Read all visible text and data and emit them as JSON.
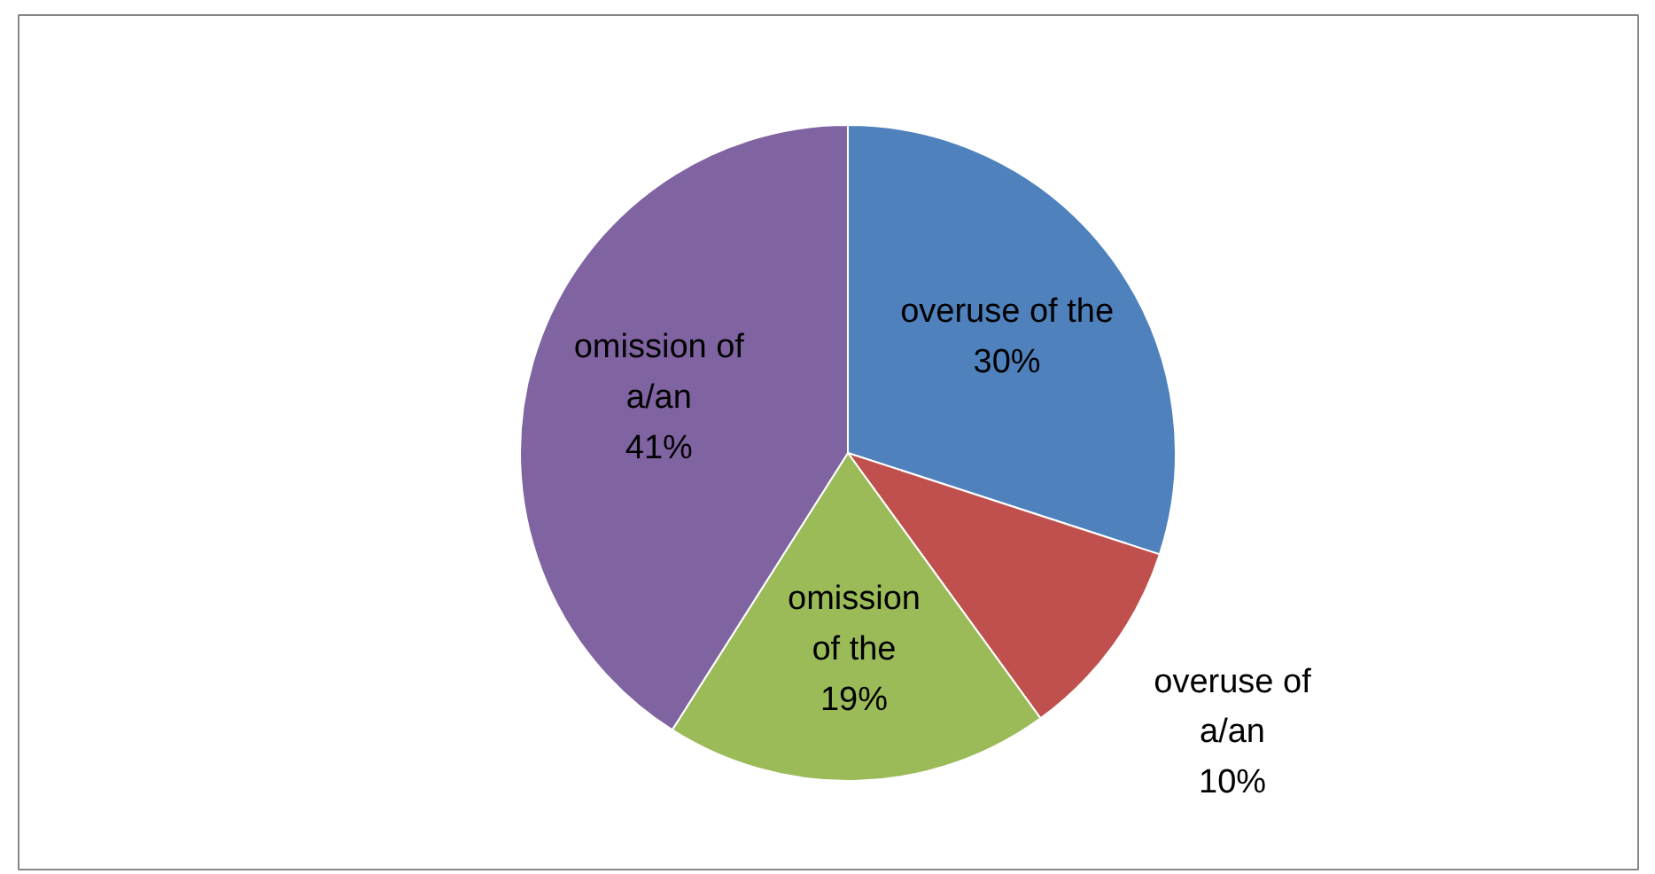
{
  "chart_data": {
    "type": "pie",
    "categories": [
      "overuse of the",
      "overuse of a/an",
      "omission of the",
      "omission of a/an"
    ],
    "values": [
      30,
      10,
      19,
      41
    ],
    "colors": [
      "#4f81bd",
      "#c0504d",
      "#9bbb59",
      "#8064a2"
    ],
    "value_labels": [
      "30%",
      "10%",
      "19%",
      "41%"
    ]
  }
}
